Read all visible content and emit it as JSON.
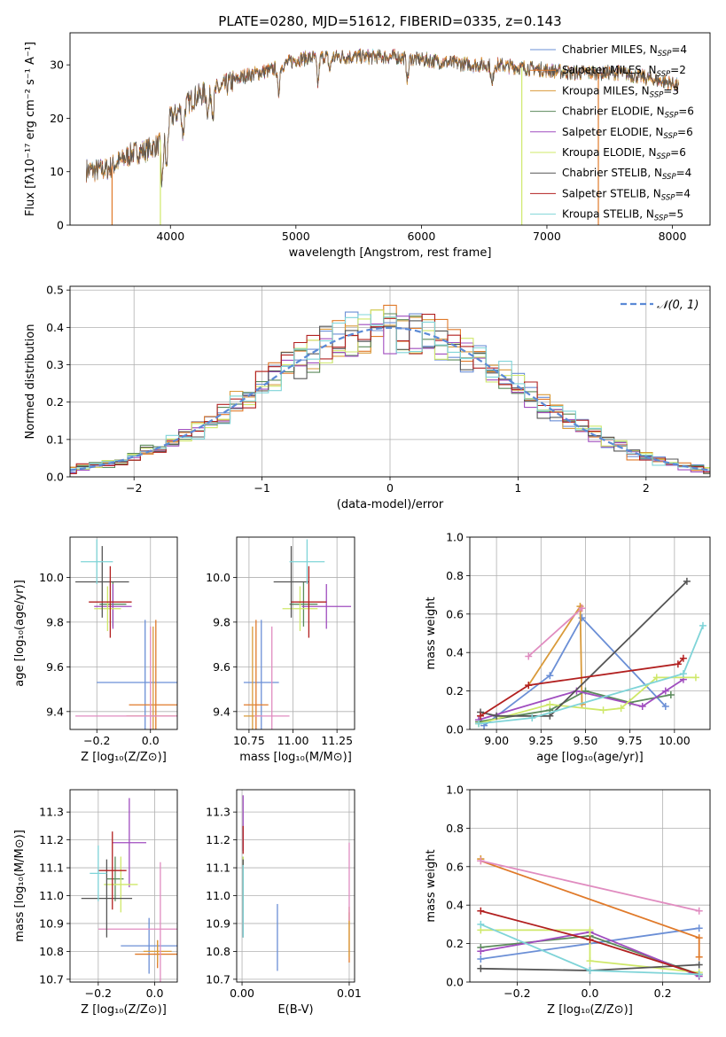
{
  "figure": {
    "title": "PLATE=0280, MJD=51612, FIBERID=0335, z=0.143"
  },
  "colors": {
    "chabrier_miles": "#6b8fd6",
    "salpeter_miles": "#e07a2a",
    "kroupa_miles": "#d99a3a",
    "chabrier_elodie": "#5b8a5b",
    "salpeter_elodie": "#a04dbf",
    "kroupa_elodie": "#cfe86a",
    "chabrier_stelib": "#555555",
    "salpeter_stelib": "#b22020",
    "kroupa_stelib": "#7fd4d8",
    "pink": "#e08cc0",
    "normal": "#5b8ad6"
  },
  "chart_data": [
    {
      "id": "spectrum",
      "type": "line",
      "xlabel": "wavelength [Angstrom, rest frame]",
      "ylabel": "Flux [fλ10⁻¹⁷ erg cm⁻² s⁻¹ A⁻¹]",
      "xlim": [
        3200,
        8300
      ],
      "ylim": [
        0,
        36
      ],
      "xticks": [
        "4000",
        "5000",
        "6000",
        "7000",
        "8000"
      ],
      "yticks": [
        "0",
        "10",
        "20",
        "30"
      ],
      "legend_position": "top-right",
      "series": [
        {
          "name": "Chabrier MILES, N_SSP=4",
          "label": "Chabrier MILES, N",
          "sub": "SSP",
          "suffix": "=4"
        },
        {
          "name": "Salpeter MILES, N_SSP=2",
          "label": "Salpeter MILES, N",
          "sub": "SSP",
          "suffix": "=2"
        },
        {
          "name": "Kroupa MILES, N_SSP=3",
          "label": "Kroupa MILES, N",
          "sub": "SSP",
          "suffix": "=3"
        },
        {
          "name": "Chabrier ELODIE, N_SSP=6",
          "label": "Chabrier ELODIE, N",
          "sub": "SSP",
          "suffix": "=6"
        },
        {
          "name": "Salpeter ELODIE, N_SSP=6",
          "label": "Salpeter ELODIE, N",
          "sub": "SSP",
          "suffix": "=6"
        },
        {
          "name": "Kroupa ELODIE, N_SSP=6",
          "label": "Kroupa ELODIE, N",
          "sub": "SSP",
          "suffix": "=6"
        },
        {
          "name": "Chabrier STELIB, N_SSP=4",
          "label": "Chabrier STELIB, N",
          "sub": "SSP",
          "suffix": "=4"
        },
        {
          "name": "Salpeter STELIB, N_SSP=4",
          "label": "Salpeter STELIB, N",
          "sub": "SSP",
          "suffix": "=4"
        },
        {
          "name": "Kroupa STELIB, N_SSP=5",
          "label": "Kroupa STELIB, N",
          "sub": "SSP",
          "suffix": "=5"
        }
      ],
      "continuum_wavelengths": [
        3330,
        3400,
        3500,
        3600,
        3700,
        3800,
        3900,
        4000,
        4100,
        4200,
        4300,
        4400,
        4500,
        4600,
        4700,
        4800,
        4900,
        5000,
        5200,
        5400,
        5600,
        5800,
        6000,
        6200,
        6400,
        6600,
        6800,
        7000,
        7200,
        7400,
        7600,
        7800,
        8000,
        8050
      ],
      "continuum_flux": [
        10.3,
        10.2,
        10.5,
        12,
        13.5,
        14,
        15,
        20,
        22,
        24,
        25,
        25.5,
        27,
        28,
        28.5,
        29,
        30,
        31,
        31.5,
        31.5,
        31.5,
        31.5,
        31,
        30.5,
        30,
        30,
        29.5,
        29,
        28.5,
        28.5,
        28.5,
        27.5,
        26.5,
        26
      ]
    },
    {
      "id": "residual_histogram",
      "type": "bar",
      "xlabel": "(data-model)/error",
      "ylabel": "Normed distribution",
      "xlim": [
        -2.5,
        2.5
      ],
      "ylim": [
        0,
        0.51
      ],
      "xticks": [
        "−2",
        "−1",
        "0",
        "1",
        "2"
      ],
      "yticks": [
        "0.0",
        "0.1",
        "0.2",
        "0.3",
        "0.4",
        "0.5"
      ],
      "legend": "𝒩(0, 1)",
      "bin_width": 0.1
    },
    {
      "id": "age_vs_Z",
      "type": "scatter",
      "xlabel": "Z [log₁₀(Z/Z⊙)]",
      "ylabel": "age  [log₁₀(age/yr)]",
      "xlim": [
        -0.3,
        0.1
      ],
      "ylim": [
        9.32,
        10.18
      ],
      "xticks": [
        "−0.2",
        "0.0"
      ],
      "yticks": [
        "9.4",
        "9.6",
        "9.8",
        "10.0"
      ],
      "points": [
        {
          "model": "chabrier_miles",
          "x": -0.02,
          "y": 9.53,
          "xerr": 0.18,
          "yerr": 0.28
        },
        {
          "model": "salpeter_miles",
          "x": 0.02,
          "y": 9.43,
          "xerr": 0.1,
          "yerr": 0.38
        },
        {
          "model": "kroupa_miles",
          "x": 0.01,
          "y": 9.38,
          "xerr": 0.1,
          "yerr": 0.4
        },
        {
          "model": "pink",
          "x": 0.0,
          "y": 9.38,
          "xerr": 0.28,
          "yerr": 0.4
        },
        {
          "model": "chabrier_elodie",
          "x": -0.14,
          "y": 9.88,
          "xerr": 0.05,
          "yerr": 0.1
        },
        {
          "model": "salpeter_elodie",
          "x": -0.14,
          "y": 9.87,
          "xerr": 0.07,
          "yerr": 0.1
        },
        {
          "model": "kroupa_elodie",
          "x": -0.16,
          "y": 9.86,
          "xerr": 0.05,
          "yerr": 0.1
        },
        {
          "model": "chabrier_stelib",
          "x": -0.18,
          "y": 9.98,
          "xerr": 0.1,
          "yerr": 0.16
        },
        {
          "model": "salpeter_stelib",
          "x": -0.15,
          "y": 9.89,
          "xerr": 0.08,
          "yerr": 0.16
        },
        {
          "model": "kroupa_stelib",
          "x": -0.2,
          "y": 10.07,
          "xerr": 0.06,
          "yerr": 0.1
        }
      ]
    },
    {
      "id": "age_vs_mass",
      "type": "scatter",
      "xlabel": "mass [log₁₀(M/M⊙)]",
      "ylabel": "",
      "xlim": [
        10.68,
        11.35
      ],
      "ylim": [
        9.32,
        10.18
      ],
      "xticks": [
        "10.75",
        "11.00",
        "11.25"
      ],
      "yticks": [
        "9.4",
        "9.6",
        "9.8",
        "10.0"
      ],
      "points": [
        {
          "model": "chabrier_miles",
          "x": 10.82,
          "y": 9.53,
          "xerr": 0.1,
          "yerr": 0.28
        },
        {
          "model": "salpeter_miles",
          "x": 10.79,
          "y": 9.43,
          "xerr": 0.07,
          "yerr": 0.38
        },
        {
          "model": "kroupa_miles",
          "x": 10.77,
          "y": 9.38,
          "xerr": 0.05,
          "yerr": 0.4
        },
        {
          "model": "pink",
          "x": 10.88,
          "y": 9.38,
          "xerr": 0.1,
          "yerr": 0.4
        },
        {
          "model": "chabrier_elodie",
          "x": 11.06,
          "y": 9.88,
          "xerr": 0.08,
          "yerr": 0.1
        },
        {
          "model": "salpeter_elodie",
          "x": 11.19,
          "y": 9.87,
          "xerr": 0.14,
          "yerr": 0.1
        },
        {
          "model": "kroupa_elodie",
          "x": 11.04,
          "y": 9.86,
          "xerr": 0.1,
          "yerr": 0.1
        },
        {
          "model": "chabrier_stelib",
          "x": 10.99,
          "y": 9.98,
          "xerr": 0.1,
          "yerr": 0.16
        },
        {
          "model": "salpeter_stelib",
          "x": 11.09,
          "y": 9.89,
          "xerr": 0.1,
          "yerr": 0.16
        },
        {
          "model": "kroupa_stelib",
          "x": 11.08,
          "y": 10.07,
          "xerr": 0.1,
          "yerr": 0.1
        }
      ]
    },
    {
      "id": "mass_weight_vs_age",
      "type": "line",
      "xlabel": "age  [log₁₀(age/yr)]",
      "ylabel": "mass weight",
      "xlim": [
        8.85,
        10.2
      ],
      "ylim": [
        0,
        1
      ],
      "xticks": [
        "9.00",
        "9.25",
        "9.50",
        "9.75",
        "10.00"
      ],
      "yticks": [
        "0.0",
        "0.2",
        "0.4",
        "0.6",
        "0.8",
        "1.0"
      ],
      "series": [
        {
          "model": "chabrier_miles",
          "x": [
            8.93,
            9.3,
            9.48,
            9.95
          ],
          "y": [
            0.02,
            0.28,
            0.58,
            0.12
          ]
        },
        {
          "model": "salpeter_miles",
          "x": [
            9.48,
            9.48
          ],
          "y": [
            0.63,
            0.63
          ]
        },
        {
          "model": "kroupa_miles",
          "x": [
            9.18,
            9.47,
            9.48
          ],
          "y": [
            0.23,
            0.64,
            0.13
          ]
        },
        {
          "model": "pink",
          "x": [
            9.18,
            9.48
          ],
          "y": [
            0.38,
            0.63
          ]
        },
        {
          "model": "chabrier_elodie",
          "x": [
            8.9,
            9.3,
            9.5,
            9.75,
            9.98
          ],
          "y": [
            0.04,
            0.1,
            0.2,
            0.14,
            0.18
          ]
        },
        {
          "model": "salpeter_elodie",
          "x": [
            8.9,
            9.45,
            9.82,
            9.95,
            10.05
          ],
          "y": [
            0.05,
            0.2,
            0.12,
            0.2,
            0.26
          ]
        },
        {
          "model": "kroupa_elodie",
          "x": [
            8.9,
            9.3,
            9.6,
            9.7,
            9.9,
            10.12
          ],
          "y": [
            0.03,
            0.13,
            0.1,
            0.11,
            0.27,
            0.27
          ]
        },
        {
          "model": "chabrier_stelib",
          "x": [
            8.91,
            9.0,
            9.3,
            10.07
          ],
          "y": [
            0.09,
            0.07,
            0.07,
            0.77
          ]
        },
        {
          "model": "salpeter_stelib",
          "x": [
            8.91,
            9.18,
            10.02,
            10.05
          ],
          "y": [
            0.07,
            0.23,
            0.34,
            0.37
          ]
        },
        {
          "model": "kroupa_stelib",
          "x": [
            8.9,
            9.2,
            10.05,
            10.16
          ],
          "y": [
            0.03,
            0.06,
            0.29,
            0.54
          ]
        }
      ]
    },
    {
      "id": "mass_vs_Z",
      "type": "scatter",
      "xlabel": "Z [log₁₀(Z/Z⊙)]",
      "ylabel": "mass [log₁₀(M/M⊙)]",
      "xlim": [
        -0.3,
        0.08
      ],
      "ylim": [
        10.69,
        11.38
      ],
      "xticks": [
        "−0.2",
        "0.0"
      ],
      "yticks": [
        "10.7",
        "10.8",
        "10.9",
        "11.0",
        "11.1",
        "11.2",
        "11.3"
      ],
      "points": [
        {
          "model": "chabrier_miles",
          "x": -0.02,
          "y": 10.82,
          "xerr": 0.1,
          "yerr": 0.1
        },
        {
          "model": "salpeter_miles",
          "x": 0.01,
          "y": 10.79,
          "xerr": 0.08,
          "yerr": 0.05
        },
        {
          "model": "kroupa_miles",
          "x": 0.01,
          "y": 10.8,
          "xerr": 0.05,
          "yerr": 0.04
        },
        {
          "model": "pink",
          "x": 0.02,
          "y": 10.88,
          "xerr": 0.22,
          "yerr": 0.24
        },
        {
          "model": "chabrier_elodie",
          "x": -0.14,
          "y": 11.06,
          "xerr": 0.03,
          "yerr": 0.08
        },
        {
          "model": "salpeter_elodie",
          "x": -0.09,
          "y": 11.19,
          "xerr": 0.06,
          "yerr": 0.16
        },
        {
          "model": "kroupa_elodie",
          "x": -0.12,
          "y": 11.04,
          "xerr": 0.06,
          "yerr": 0.1
        },
        {
          "model": "chabrier_stelib",
          "x": -0.17,
          "y": 10.99,
          "xerr": 0.09,
          "yerr": 0.14
        },
        {
          "model": "salpeter_stelib",
          "x": -0.15,
          "y": 11.09,
          "xerr": 0.05,
          "yerr": 0.14
        },
        {
          "model": "kroupa_stelib",
          "x": -0.2,
          "y": 11.08,
          "xerr": 0.03,
          "yerr": 0.1
        }
      ]
    },
    {
      "id": "mass_vs_ebv",
      "type": "scatter",
      "xlabel": "E(B-V)",
      "ylabel": "",
      "xlim": [
        -0.0005,
        0.0105
      ],
      "ylim": [
        10.69,
        11.38
      ],
      "xticks": [
        "0.00",
        "0.01"
      ],
      "yticks": [
        "10.7",
        "10.8",
        "10.9",
        "11.0",
        "11.1",
        "11.2",
        "11.3"
      ],
      "points": [
        {
          "model": "chabrier_miles",
          "x": 0.0033,
          "y": 10.85,
          "xerr": 0,
          "yerr": 0.12
        },
        {
          "model": "salpeter_miles",
          "x": 0.01,
          "y": 10.86,
          "xerr": 0,
          "yerr": 0.1
        },
        {
          "model": "kroupa_miles",
          "x": 0.01,
          "y": 10.86,
          "xerr": 0,
          "yerr": 0.08
        },
        {
          "model": "pink",
          "x": 0.01,
          "y": 11.05,
          "xerr": 0,
          "yerr": 0.14
        },
        {
          "model": "chabrier_elodie",
          "x": 0.0001,
          "y": 11.06,
          "xerr": 0,
          "yerr": 0.08
        },
        {
          "model": "salpeter_elodie",
          "x": 0.0001,
          "y": 11.26,
          "xerr": 0,
          "yerr": 0.1
        },
        {
          "model": "kroupa_elodie",
          "x": 0.0001,
          "y": 11.04,
          "xerr": 0,
          "yerr": 0.1
        },
        {
          "model": "chabrier_stelib",
          "x": 0.0001,
          "y": 10.99,
          "xerr": 0,
          "yerr": 0.14
        },
        {
          "model": "salpeter_stelib",
          "x": 0.0001,
          "y": 11.2,
          "xerr": 0,
          "yerr": 0.05
        },
        {
          "model": "kroupa_stelib",
          "x": 0.0001,
          "y": 10.98,
          "xerr": 0,
          "yerr": 0.13
        }
      ]
    },
    {
      "id": "mass_weight_vs_Z",
      "type": "line",
      "xlabel": "Z [log₁₀(Z/Z⊙)]",
      "ylabel": "mass weight",
      "xlim": [
        -0.33,
        0.33
      ],
      "ylim": [
        0,
        1
      ],
      "xticks": [
        "−0.2",
        "0.0",
        "0.2"
      ],
      "yticks": [
        "0.0",
        "0.2",
        "0.4",
        "0.6",
        "0.8",
        "1.0"
      ],
      "series": [
        {
          "model": "chabrier_miles",
          "x": [
            -0.3,
            0.3
          ],
          "y": [
            0.12,
            0.28
          ]
        },
        {
          "model": "salpeter_miles",
          "x": [
            -0.3,
            0.3,
            0.3
          ],
          "y": [
            0.63,
            0.23,
            0.13
          ]
        },
        {
          "model": "kroupa_miles",
          "x": [
            -0.3,
            -0.3
          ],
          "y": [
            0.64,
            0.64
          ]
        },
        {
          "model": "pink",
          "x": [
            -0.3,
            0.3
          ],
          "y": [
            0.63,
            0.37
          ]
        },
        {
          "model": "chabrier_elodie",
          "x": [
            -0.3,
            0.0,
            0.3
          ],
          "y": [
            0.18,
            0.24,
            0.04
          ]
        },
        {
          "model": "salpeter_elodie",
          "x": [
            -0.3,
            0.0,
            0.3
          ],
          "y": [
            0.16,
            0.26,
            0.03
          ]
        },
        {
          "model": "kroupa_elodie",
          "x": [
            -0.3,
            0.0,
            0.0,
            0.3
          ],
          "y": [
            0.27,
            0.27,
            0.11,
            0.05
          ]
        },
        {
          "model": "chabrier_stelib",
          "x": [
            -0.3,
            0.0,
            0.3
          ],
          "y": [
            0.07,
            0.06,
            0.09
          ]
        },
        {
          "model": "salpeter_stelib",
          "x": [
            -0.3,
            0.0,
            0.3
          ],
          "y": [
            0.37,
            0.22,
            0.04
          ]
        },
        {
          "model": "kroupa_stelib",
          "x": [
            -0.3,
            0.0,
            0.3
          ],
          "y": [
            0.3,
            0.06,
            0.04
          ]
        }
      ]
    }
  ]
}
